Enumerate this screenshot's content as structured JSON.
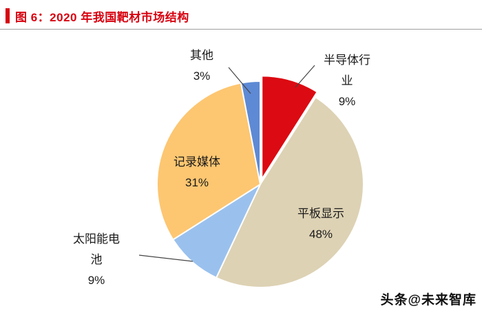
{
  "header": {
    "title": "图 6：2020 年我国靶材市场结构",
    "accent_color": "#d7000f"
  },
  "chart_data": {
    "type": "pie",
    "title": "2020 年我国靶材市场结构",
    "unit": "%",
    "categories": [
      "半导体行业",
      "平板显示",
      "太阳能电池",
      "记录媒体",
      "其他"
    ],
    "values": [
      9,
      48,
      9,
      31,
      3
    ],
    "colors": [
      "#dc0a12",
      "#ddd2b4",
      "#9ac1ee",
      "#fdc671",
      "#5e8ad5"
    ],
    "slice_keys": [
      "semiconductor",
      "flat-panel",
      "solar-cell",
      "recording-media",
      "other"
    ],
    "start_angle_deg": 0,
    "direction": "clockwise",
    "legend_position": "none",
    "callout_labels": {
      "semiconductor": "半导体行\n业\n9%",
      "flat_panel": "平板显示\n48%",
      "solar_cell": "太阳能电\n池\n9%",
      "recording_media": "记录媒体\n31%",
      "other": "其他\n3%"
    }
  },
  "watermark": {
    "text": "头条@未来智库"
  }
}
